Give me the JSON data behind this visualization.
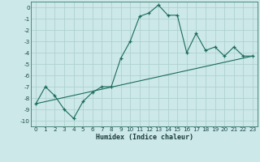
{
  "xlabel": "Humidex (Indice chaleur)",
  "line1_x": [
    0,
    1,
    2,
    3,
    4,
    5,
    6,
    7,
    8,
    9,
    10,
    11,
    12,
    13,
    14,
    15,
    16,
    17,
    18,
    19,
    20,
    21,
    22,
    23
  ],
  "line1_y": [
    -8.5,
    -7.0,
    -7.8,
    -9.0,
    -9.8,
    -8.3,
    -7.5,
    -7.0,
    -7.0,
    -4.5,
    -3.0,
    -0.8,
    -0.5,
    0.2,
    -0.7,
    -0.7,
    -4.0,
    -2.3,
    -3.8,
    -3.5,
    -4.3,
    -3.5,
    -4.3,
    -4.3
  ],
  "line2_x": [
    0,
    23
  ],
  "line2_y": [
    -8.5,
    -4.3
  ],
  "line_color": "#1a6b5a",
  "bg_color": "#cce8e8",
  "grid_color": "#aacece",
  "xlim": [
    -0.5,
    23.5
  ],
  "ylim": [
    -10.5,
    0.5
  ],
  "yticks": [
    0,
    -1,
    -2,
    -3,
    -4,
    -5,
    -6,
    -7,
    -8,
    -9,
    -10
  ],
  "xticks": [
    0,
    1,
    2,
    3,
    4,
    5,
    6,
    7,
    8,
    9,
    10,
    11,
    12,
    13,
    14,
    15,
    16,
    17,
    18,
    19,
    20,
    21,
    22,
    23
  ],
  "tick_fontsize": 5.2,
  "xlabel_fontsize": 6.0,
  "marker_size": 3.5,
  "linewidth": 0.8
}
